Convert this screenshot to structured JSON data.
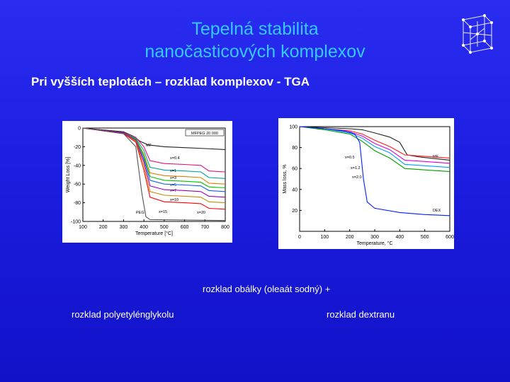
{
  "title_line1": "Tepelná stabilita",
  "title_line2": "nanočasticových komplexov",
  "subtitle": "Pri vyšších teplotách – rozklad komplexov - TGA",
  "captions": {
    "envelope": "rozklad obálky (oleaát sodný) +",
    "peg": "rozklad polyetylénglykolu",
    "dextran": "rozklad dextranu"
  },
  "chart_data": [
    {
      "type": "line",
      "legend": "MFPEG 20 000",
      "xlabel": "Temperature [°C]",
      "ylabel": "Weight Loss [%]",
      "xlim": [
        100,
        800
      ],
      "ylim": [
        -100,
        0
      ],
      "xticks": [
        "100",
        "200",
        "300",
        "400",
        "500",
        "600",
        "700",
        "800"
      ],
      "yticks": [
        "0",
        "-20",
        "-40",
        "-60",
        "-80",
        "-100"
      ],
      "series": [
        {
          "name": "MF",
          "color": "#222222",
          "x": [
            100,
            300,
            350,
            380,
            420,
            500,
            600,
            700,
            800
          ],
          "y": [
            0,
            -4,
            -9,
            -14,
            -18,
            -20,
            -21,
            -22,
            -23
          ]
        },
        {
          "name": "x=0.4",
          "color": "#e0107a",
          "x": [
            100,
            300,
            360,
            400,
            430,
            500,
            600,
            680,
            720,
            800
          ],
          "y": [
            0,
            -5,
            -10,
            -20,
            -35,
            -38,
            -39,
            -40,
            -46,
            -47
          ]
        },
        {
          "name": "x=1",
          "color": "#00a0a0",
          "x": [
            100,
            300,
            360,
            400,
            430,
            500,
            600,
            680,
            720,
            800
          ],
          "y": [
            0,
            -5,
            -11,
            -24,
            -42,
            -45,
            -46,
            -47,
            -53,
            -54
          ]
        },
        {
          "name": "x=3",
          "color": "#e08000",
          "x": [
            100,
            300,
            360,
            400,
            430,
            500,
            600,
            680,
            720,
            800
          ],
          "y": [
            0,
            -5,
            -12,
            -28,
            -48,
            -51,
            -52,
            -53,
            -59,
            -60
          ]
        },
        {
          "name": "x=5",
          "color": "#00c000",
          "x": [
            100,
            300,
            360,
            400,
            430,
            500,
            600,
            680,
            720,
            800
          ],
          "y": [
            0,
            -5,
            -12,
            -30,
            -52,
            -56,
            -57,
            -58,
            -63,
            -64
          ]
        },
        {
          "name": "x=7",
          "color": "#1060ff",
          "x": [
            100,
            300,
            360,
            400,
            430,
            500,
            600,
            680,
            720,
            800
          ],
          "y": [
            0,
            -5,
            -13,
            -33,
            -56,
            -60,
            -61,
            -62,
            -67,
            -68
          ]
        },
        {
          "name": "x=10",
          "color": "#a000c0",
          "x": [
            100,
            300,
            360,
            400,
            430,
            500,
            600,
            680,
            720,
            800
          ],
          "y": [
            0,
            -5,
            -13,
            -36,
            -62,
            -66,
            -67,
            -68,
            -73,
            -74
          ]
        },
        {
          "name": "x=15",
          "color": "#cc8800",
          "x": [
            100,
            300,
            360,
            400,
            430,
            500,
            600,
            680,
            720,
            800
          ],
          "y": [
            0,
            -6,
            -14,
            -40,
            -68,
            -72,
            -73,
            -74,
            -79,
            -80
          ]
        },
        {
          "name": "x=20",
          "color": "#ff0000",
          "x": [
            100,
            300,
            360,
            400,
            430,
            500,
            600,
            680,
            720,
            800
          ],
          "y": [
            0,
            -6,
            -15,
            -45,
            -74,
            -79,
            -80,
            -81,
            -86,
            -87
          ]
        },
        {
          "name": "PEG",
          "color": "#555555",
          "x": [
            100,
            300,
            360,
            390,
            410,
            430,
            800
          ],
          "y": [
            0,
            -6,
            -20,
            -70,
            -95,
            -98,
            -99
          ]
        }
      ]
    },
    {
      "type": "line",
      "xlabel": "Temperature, °C",
      "ylabel": "Mass loss, %",
      "xlim": [
        0,
        600
      ],
      "ylim": [
        0,
        100
      ],
      "xticks": [
        "0",
        "100",
        "200",
        "300",
        "400",
        "500",
        "600"
      ],
      "yticks": [
        "20",
        "40",
        "60",
        "80",
        "100"
      ],
      "series": [
        {
          "name": "MF",
          "color": "#222222",
          "x": [
            0,
            100,
            200,
            250,
            300,
            360,
            400,
            430,
            480,
            600
          ],
          "y": [
            100,
            99,
            98,
            97,
            94,
            90,
            85,
            73,
            71,
            68
          ]
        },
        {
          "name": "x=0.5",
          "color": "#ff2020",
          "x": [
            0,
            100,
            200,
            250,
            300,
            360,
            420,
            480,
            600
          ],
          "y": [
            100,
            98,
            96,
            93,
            87,
            81,
            73,
            72,
            70
          ]
        },
        {
          "name": "",
          "color": "#e000e0",
          "x": [
            0,
            100,
            200,
            250,
            300,
            360,
            420,
            480,
            600
          ],
          "y": [
            100,
            98,
            95,
            91,
            84,
            78,
            68,
            67,
            65
          ]
        },
        {
          "name": "x=1.2",
          "color": "#00a0ff",
          "x": [
            0,
            100,
            200,
            250,
            300,
            360,
            420,
            480,
            600
          ],
          "y": [
            100,
            98,
            94,
            89,
            81,
            75,
            64,
            63,
            61
          ]
        },
        {
          "name": "x=2.0",
          "color": "#00a000",
          "x": [
            0,
            100,
            200,
            250,
            300,
            360,
            420,
            480,
            600
          ],
          "y": [
            100,
            97,
            93,
            86,
            77,
            70,
            60,
            59,
            57
          ]
        },
        {
          "name": "DEX",
          "color": "#0020ff",
          "x": [
            0,
            100,
            180,
            220,
            240,
            255,
            270,
            300,
            400,
            500,
            600
          ],
          "y": [
            100,
            98,
            96,
            93,
            85,
            50,
            28,
            22,
            18,
            16,
            15
          ]
        }
      ]
    }
  ]
}
